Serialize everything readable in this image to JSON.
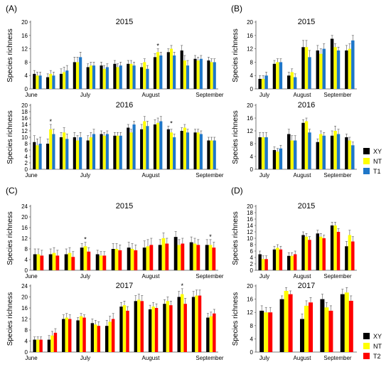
{
  "colors": {
    "XY": "#000000",
    "NT": "#ffff00",
    "T1": "#1f77c8",
    "T2": "#ff0000"
  },
  "legends": [
    {
      "id": "legend-top",
      "items": [
        {
          "label": "XY",
          "color": "#000000"
        },
        {
          "label": "NT",
          "color": "#ffff00"
        },
        {
          "label": "T1",
          "color": "#1f77c8"
        }
      ]
    },
    {
      "id": "legend-bottom",
      "items": [
        {
          "label": "XY",
          "color": "#000000"
        },
        {
          "label": "NT",
          "color": "#ffff00"
        },
        {
          "label": "T2",
          "color": "#ff0000"
        }
      ]
    }
  ],
  "chart_data": [
    {
      "type": "bar",
      "panel": "(A)",
      "title": "2015",
      "ylabel": "Species richness",
      "ylim": [
        0,
        20
      ],
      "yticks": [
        0,
        4,
        8,
        12,
        16,
        20
      ],
      "x_labels": [
        "June",
        "July",
        "August",
        "September"
      ],
      "series": [
        {
          "name": "XY",
          "values": [
            4.5,
            3.5,
            4.5,
            8,
            6.5,
            7,
            7.5,
            7.5,
            6.5,
            9.5,
            11,
            11.5,
            9,
            8.5
          ]
        },
        {
          "name": "NT",
          "values": [
            4,
            4.5,
            5,
            8,
            7,
            6,
            6.5,
            7.5,
            8,
            11,
            12,
            8.5,
            8.5,
            8
          ]
        },
        {
          "name": "T1",
          "values": [
            4,
            4,
            5.5,
            9.5,
            7,
            6.5,
            7,
            7,
            6,
            10,
            10,
            7,
            9,
            8
          ]
        }
      ],
      "errors": [
        1,
        1,
        1.5,
        1.5,
        1,
        1,
        1,
        1,
        1,
        1,
        1,
        1.5,
        1,
        1
      ],
      "stars": [
        9
      ]
    },
    {
      "type": "bar",
      "panel": "(B)",
      "title": "2015",
      "ylabel": "Species richness",
      "ylim": [
        0,
        20
      ],
      "yticks": [
        0,
        4,
        8,
        12,
        16,
        20
      ],
      "x_labels": [
        "July",
        "August",
        "September"
      ],
      "series": [
        {
          "name": "XY",
          "values": [
            3,
            7.5,
            4,
            12.5,
            11.5,
            15,
            11.5
          ]
        },
        {
          "name": "NT",
          "values": [
            3,
            8,
            5,
            12.5,
            10.5,
            12.5,
            12
          ]
        },
        {
          "name": "T1",
          "values": [
            4,
            8,
            3.5,
            9.5,
            12,
            11.5,
            14.5
          ]
        }
      ],
      "errors": [
        1,
        1,
        1,
        2,
        1.5,
        1,
        1.5
      ],
      "stars": []
    },
    {
      "type": "bar",
      "panel": "",
      "title": "2016",
      "ylabel": "Species richness",
      "ylim": [
        0,
        20
      ],
      "yticks": [
        0,
        2,
        4,
        6,
        8,
        10,
        12,
        14,
        16,
        18,
        20
      ],
      "x_labels": [
        "June",
        "July",
        "August",
        "September"
      ],
      "series": [
        {
          "name": "XY",
          "values": [
            8.5,
            8,
            10,
            10,
            9,
            11,
            10.5,
            13,
            12.5,
            14,
            12.5,
            12,
            11.5,
            9
          ]
        },
        {
          "name": "NT",
          "values": [
            7.5,
            12.5,
            11.5,
            9,
            10,
            10.5,
            10.5,
            11.5,
            15,
            14.5,
            11.5,
            13,
            11.5,
            9
          ]
        },
        {
          "name": "T1",
          "values": [
            8,
            11,
            9.5,
            10,
            11,
            11,
            10.5,
            14,
            13.5,
            15,
            10,
            11.5,
            11,
            9
          ]
        }
      ],
      "errors": [
        2,
        1.5,
        1.5,
        1.5,
        1.5,
        1,
        1,
        1,
        1.5,
        1.5,
        1,
        1,
        1,
        1
      ],
      "stars": [
        1,
        10
      ]
    },
    {
      "type": "bar",
      "panel": "",
      "title": "2016",
      "ylabel": "Species richness",
      "ylim": [
        0,
        20
      ],
      "yticks": [
        0,
        4,
        8,
        12,
        16,
        20
      ],
      "x_labels": [
        "July",
        "August",
        "September"
      ],
      "series": [
        {
          "name": "XY",
          "values": [
            10,
            6,
            11,
            14.5,
            8.5,
            10.5,
            10
          ]
        },
        {
          "name": "NT",
          "values": [
            10,
            5.5,
            9,
            15,
            11,
            12,
            9
          ]
        },
        {
          "name": "T1",
          "values": [
            10,
            6.5,
            9,
            11.5,
            10.5,
            11,
            7.5
          ]
        }
      ],
      "errors": [
        1.5,
        1,
        1.5,
        1,
        1,
        1.5,
        1
      ],
      "stars": []
    },
    {
      "type": "bar",
      "panel": "(C)",
      "title": "2015",
      "ylabel": "Species richness",
      "ylim": [
        0,
        24
      ],
      "yticks": [
        0,
        4,
        8,
        12,
        16,
        20,
        24
      ],
      "x_labels": [
        "June",
        "July",
        "August",
        "September"
      ],
      "series": [
        {
          "name": "XY",
          "values": [
            6,
            6,
            6,
            8.5,
            6,
            8,
            8.5,
            8.5,
            9.5,
            12.5,
            10.5,
            9.5
          ]
        },
        {
          "name": "NT",
          "values": [
            6,
            6.5,
            6.5,
            9,
            5.5,
            8,
            8,
            9,
            12,
            9.5,
            10,
            9.5
          ]
        },
        {
          "name": "T2",
          "values": [
            5.5,
            5.5,
            5,
            7,
            5.5,
            7.5,
            7.5,
            9.5,
            10,
            10,
            9.5,
            8.5
          ]
        }
      ],
      "errors": [
        2,
        2,
        2,
        1.5,
        1.5,
        2,
        2,
        2.5,
        2,
        2,
        2,
        2
      ],
      "stars": [
        3,
        11
      ]
    },
    {
      "type": "bar",
      "panel": "(D)",
      "title": "2015",
      "ylabel": "Species richness",
      "ylim": [
        0,
        20
      ],
      "yticks": [
        0,
        2,
        4,
        6,
        8,
        10,
        12,
        14,
        16,
        18,
        20
      ],
      "x_labels": [
        "July",
        "August",
        "September"
      ],
      "series": [
        {
          "name": "XY",
          "values": [
            5,
            6.5,
            4.5,
            11,
            11.5,
            14,
            7.5
          ]
        },
        {
          "name": "NT",
          "values": [
            3.5,
            7,
            4.5,
            10.5,
            10.5,
            14,
            11
          ]
        },
        {
          "name": "T2",
          "values": [
            3.5,
            6.5,
            5,
            9.5,
            10,
            12,
            9
          ]
        }
      ],
      "errors": [
        1,
        1,
        1,
        1,
        1,
        1,
        1.5
      ],
      "stars": []
    },
    {
      "type": "bar",
      "panel": "",
      "title": "2017",
      "ylabel": "Species richness",
      "ylim": [
        0,
        24
      ],
      "yticks": [
        0,
        4,
        8,
        12,
        16,
        20,
        24
      ],
      "x_labels": [
        "June",
        "July",
        "August",
        "September"
      ],
      "series": [
        {
          "name": "XY",
          "values": [
            4.5,
            4.5,
            12,
            11.5,
            10.5,
            9.5,
            16.5,
            18.5,
            15.5,
            17.5,
            20,
            20,
            12.5
          ]
        },
        {
          "name": "NT",
          "values": [
            4.5,
            6,
            12.5,
            13,
            10,
            11,
            17,
            19,
            16.5,
            18.5,
            21,
            20.5,
            13
          ]
        },
        {
          "name": "T2",
          "values": [
            4.5,
            7,
            12,
            12.5,
            9.5,
            12,
            15,
            18.5,
            16,
            17,
            17.5,
            20.5,
            14
          ]
        }
      ],
      "errors": [
        1,
        1.5,
        1.5,
        1,
        1.5,
        2,
        1.5,
        2,
        1.5,
        1.5,
        2,
        2,
        1.5
      ],
      "stars": [
        10
      ]
    },
    {
      "type": "bar",
      "panel": "",
      "title": "2017",
      "ylabel": "Species richness",
      "ylim": [
        0,
        20
      ],
      "yticks": [
        0,
        4,
        8,
        12,
        16,
        20
      ],
      "x_labels": [
        "July",
        "August",
        "September"
      ],
      "series": [
        {
          "name": "XY",
          "values": [
            12.5,
            16,
            10,
            16,
            17.5
          ]
        },
        {
          "name": "NT",
          "values": [
            12,
            18.5,
            14,
            13.5,
            18
          ]
        },
        {
          "name": "T2",
          "values": [
            12,
            17.5,
            15,
            12.5,
            15.5
          ]
        }
      ],
      "errors": [
        1.5,
        1,
        1.5,
        1.5,
        1.5
      ],
      "stars": []
    }
  ]
}
